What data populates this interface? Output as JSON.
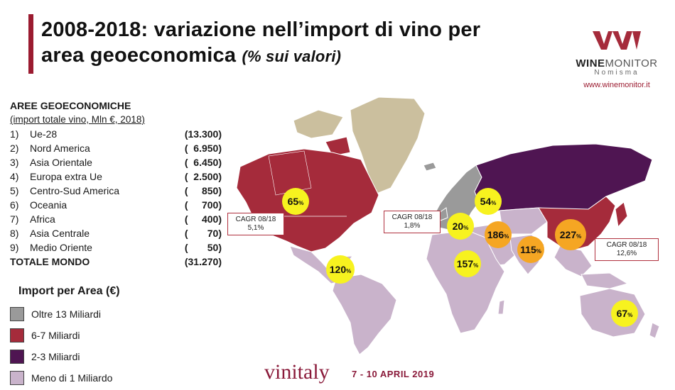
{
  "title": {
    "line1": "2008-2018: variazione nell’import di vino per",
    "line2": "area geoeconomica",
    "subtitle": "(% sui valori)"
  },
  "logo": {
    "brand_bold": "WINE",
    "brand_light": "MONITOR",
    "sub": "Nomisma",
    "url": "www.winemonitor.it"
  },
  "areas": {
    "header": "AREE GEOECONOMICHE",
    "subheader": "(import totale vino, Mln €,  2018)",
    "rows": [
      {
        "num": "1)",
        "name": "Ue-28",
        "value": "(13.300)"
      },
      {
        "num": "2)",
        "name": "Nord America",
        "value": "(  6.950)"
      },
      {
        "num": "3)",
        "name": "Asia Orientale",
        "value": "(  6.450)"
      },
      {
        "num": "4)",
        "name": "Europa extra Ue",
        "value": "(  2.500)"
      },
      {
        "num": "5)",
        "name": "Centro-Sud America",
        "value": "(     850)"
      },
      {
        "num": "6)",
        "name": "Oceania",
        "value": "(     700)"
      },
      {
        "num": "7)",
        "name": "Africa",
        "value": "(     400)"
      },
      {
        "num": "8)",
        "name": "Asia Centrale",
        "value": "(       70)"
      },
      {
        "num": "9)",
        "name": "Medio Oriente",
        "value": "(       50)"
      }
    ],
    "total_label": "TOTALE MONDO",
    "total_value": "(31.270)"
  },
  "legend": {
    "title": "Import per Area (€)",
    "items": [
      {
        "label": "Oltre 13 Miliardi",
        "color": "#9a9a9a"
      },
      {
        "label": "6-7 Miliardi",
        "color": "#a52b3b"
      },
      {
        "label": "2-3 Miliardi",
        "color": "#4f1552"
      },
      {
        "label": "Meno di 1 Miliardo",
        "color": "#c9b3cb"
      }
    ]
  },
  "colors": {
    "accent": "#9b1b30",
    "greenland": "#cbbf9e",
    "bubble_yellow": "#f7f21f",
    "bubble_orange": "#f5a623"
  },
  "bubbles": [
    {
      "value": "65",
      "unit": "%",
      "color": "yellow"
    },
    {
      "value": "54",
      "unit": "%",
      "color": "yellow"
    },
    {
      "value": "20",
      "unit": "%",
      "color": "yellow"
    },
    {
      "value": "186",
      "unit": "%",
      "color": "orange"
    },
    {
      "value": "227",
      "unit": "%",
      "color": "orange"
    },
    {
      "value": "115",
      "unit": "%",
      "color": "orange"
    },
    {
      "value": "157",
      "unit": "%",
      "color": "yellow"
    },
    {
      "value": "120",
      "unit": "%",
      "color": "yellow"
    },
    {
      "value": "67",
      "unit": "%",
      "color": "yellow"
    }
  ],
  "cagr": [
    {
      "label": "CAGR 08/18",
      "value": "5,1%"
    },
    {
      "label": "CAGR 08/18",
      "value": "1,8%"
    },
    {
      "label": "CAGR 08/18",
      "value": "12,6%"
    }
  ],
  "footer": {
    "event": "vinitaly",
    "dates": "7 - 10 APRIL 2019"
  }
}
